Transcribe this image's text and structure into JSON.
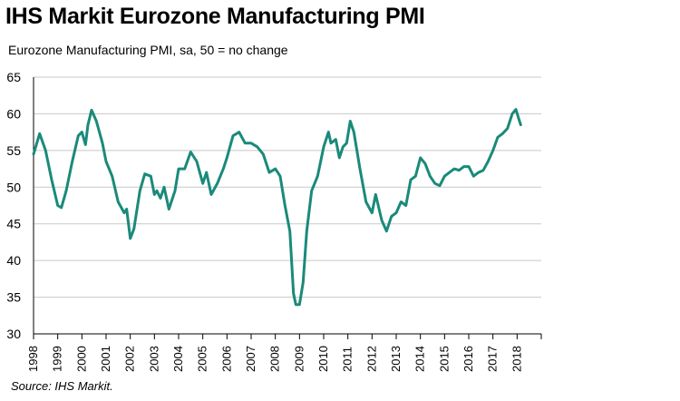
{
  "title": "IHS Markit Eurozone Manufacturing PMI",
  "subtitle": "Eurozone Manufacturing PMI, sa, 50 = no change",
  "source": "Source: IHS Markit.",
  "colors": {
    "line": "#1a8a7a",
    "grid": "#c8c8c8",
    "axis": "#000000"
  },
  "chart_data": {
    "type": "line",
    "title": "IHS Markit Eurozone Manufacturing PMI",
    "ylabel": "Eurozone Manufacturing PMI, sa, 50 = no change",
    "ylim": [
      30,
      65
    ],
    "xlim": [
      1998.0,
      2019.0
    ],
    "yticks": [
      30,
      35,
      40,
      45,
      50,
      55,
      60,
      65
    ],
    "xtick_labels": [
      "1998",
      "1999",
      "2000",
      "2001",
      "2002",
      "2003",
      "2004",
      "2005",
      "2006",
      "2007",
      "2008",
      "2009",
      "2010",
      "2011",
      "2012",
      "2013",
      "2014",
      "2015",
      "2016",
      "2017",
      "2018"
    ],
    "grid": true,
    "series": [
      {
        "name": "Eurozone Manufacturing PMI",
        "x": [
          1998.0,
          1998.25,
          1998.5,
          1998.75,
          1999.0,
          1999.15,
          1999.35,
          1999.6,
          1999.85,
          2000.0,
          2000.15,
          2000.25,
          2000.4,
          2000.6,
          2000.85,
          2001.0,
          2001.25,
          2001.5,
          2001.75,
          2001.85,
          2002.0,
          2002.15,
          2002.4,
          2002.6,
          2002.85,
          2003.0,
          2003.1,
          2003.25,
          2003.4,
          2003.6,
          2003.85,
          2004.0,
          2004.25,
          2004.5,
          2004.75,
          2005.0,
          2005.15,
          2005.35,
          2005.6,
          2005.85,
          2006.0,
          2006.25,
          2006.5,
          2006.75,
          2007.0,
          2007.25,
          2007.5,
          2007.75,
          2008.0,
          2008.2,
          2008.4,
          2008.6,
          2008.75,
          2008.85,
          2009.0,
          2009.15,
          2009.3,
          2009.5,
          2009.75,
          2010.0,
          2010.2,
          2010.3,
          2010.5,
          2010.65,
          2010.8,
          2010.95,
          2011.1,
          2011.25,
          2011.5,
          2011.75,
          2012.0,
          2012.15,
          2012.4,
          2012.6,
          2012.8,
          2013.0,
          2013.2,
          2013.4,
          2013.6,
          2013.8,
          2014.0,
          2014.2,
          2014.4,
          2014.6,
          2014.8,
          2015.0,
          2015.2,
          2015.4,
          2015.6,
          2015.8,
          2016.0,
          2016.2,
          2016.4,
          2016.6,
          2016.8,
          2017.0,
          2017.2,
          2017.4,
          2017.6,
          2017.8,
          2017.95,
          2018.05,
          2018.15
        ],
        "values": [
          54.5,
          57.3,
          55.0,
          51.0,
          47.5,
          47.2,
          49.5,
          53.5,
          57.0,
          57.5,
          55.8,
          58.5,
          60.5,
          59.0,
          56.0,
          53.5,
          51.5,
          48.0,
          46.5,
          47.0,
          43.0,
          44.3,
          49.5,
          51.8,
          51.5,
          49.0,
          49.5,
          48.5,
          50.0,
          47.0,
          49.5,
          52.5,
          52.5,
          54.8,
          53.5,
          50.5,
          52.0,
          49.0,
          50.5,
          52.5,
          54.0,
          57.0,
          57.5,
          56.0,
          56.0,
          55.5,
          54.5,
          52.0,
          52.5,
          51.5,
          47.5,
          44.0,
          35.5,
          34.0,
          34.0,
          37.0,
          44.0,
          49.5,
          51.5,
          55.5,
          57.5,
          56.0,
          56.5,
          54.0,
          55.5,
          56.0,
          59.0,
          57.5,
          52.5,
          48.0,
          46.5,
          49.0,
          45.5,
          44.0,
          46.0,
          46.5,
          48.0,
          47.5,
          51.0,
          51.5,
          54.0,
          53.2,
          51.5,
          50.5,
          50.2,
          51.5,
          52.0,
          52.5,
          52.3,
          52.8,
          52.8,
          51.5,
          52.0,
          52.3,
          53.5,
          55.0,
          56.8,
          57.3,
          58.0,
          60.0,
          60.6,
          59.5,
          58.5
        ]
      }
    ]
  }
}
